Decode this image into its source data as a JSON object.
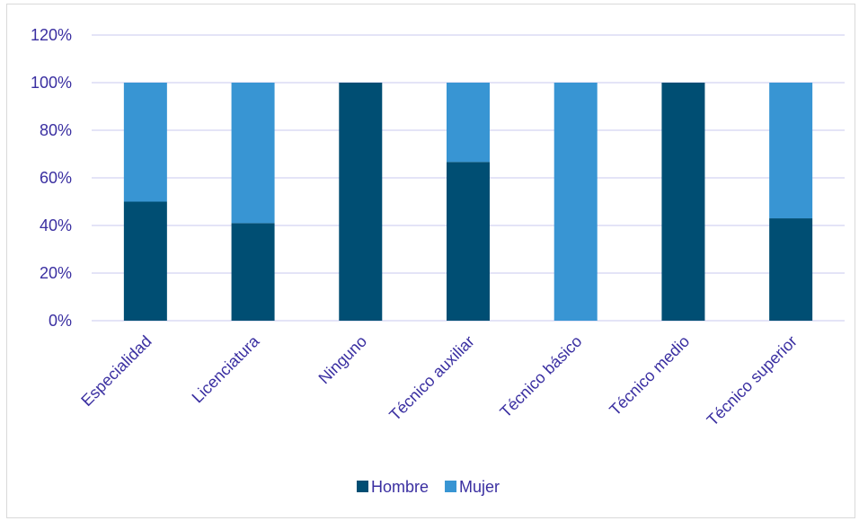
{
  "chart_data": {
    "type": "bar",
    "stacked": true,
    "categories": [
      "Especialidad",
      "Licenciatura",
      "Ninguno",
      "Técnico auxiliar",
      "Técnico básico",
      "Técnico medio",
      "Técnico superior"
    ],
    "series": [
      {
        "name": "Hombre",
        "color": "#004e73",
        "values": [
          0.5,
          0.41,
          1.0,
          0.667,
          0.0,
          1.0,
          0.43
        ]
      },
      {
        "name": "Mujer",
        "color": "#3895d3",
        "values": [
          0.5,
          0.59,
          0.0,
          0.333,
          1.0,
          0.0,
          0.57
        ]
      }
    ],
    "ylim": [
      0,
      1.2
    ],
    "yticks": [
      0,
      0.2,
      0.4,
      0.6,
      0.8,
      1.0,
      1.2
    ],
    "ytick_labels": [
      "0%",
      "20%",
      "40%",
      "60%",
      "80%",
      "100%",
      "120%"
    ],
    "grid": true,
    "legend_position": "bottom",
    "gridline_color": "#c9c9ef",
    "text_color": "#3a2fa1"
  }
}
